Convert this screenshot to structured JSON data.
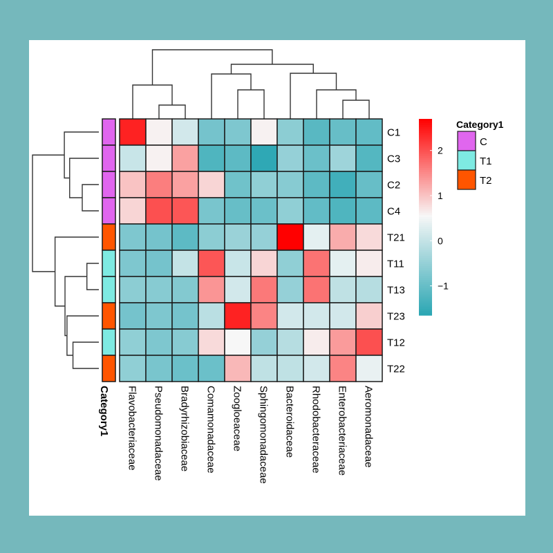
{
  "chart_data": {
    "type": "heatmap",
    "title": "",
    "rows": [
      "C1",
      "C3",
      "C2",
      "C4",
      "T21",
      "T11",
      "T13",
      "T23",
      "T12",
      "T22"
    ],
    "columns": [
      "Flavobacteriaceae",
      "Pseudomonadaceae",
      "Bradyrhizobiaceae",
      "Comamonadaceae",
      "Zoogloeaceae",
      "Sphingomonadaceae",
      "Bacteroidaceae",
      "Rhodobacteraceae",
      "Enterobacteriaceae",
      "Aeromonadaceae"
    ],
    "values": [
      [
        2.4,
        0.6,
        0.15,
        -0.85,
        -0.75,
        0.6,
        -0.6,
        -1.15,
        -1.0,
        -1.05
      ],
      [
        0.05,
        0.6,
        1.3,
        -1.25,
        -1.1,
        -1.6,
        -0.5,
        -0.95,
        -0.4,
        -1.2
      ],
      [
        1.0,
        1.6,
        1.3,
        0.85,
        -0.9,
        -0.55,
        -0.65,
        -1.1,
        -1.4,
        -1.0
      ],
      [
        0.85,
        2.0,
        1.95,
        -0.8,
        -1.0,
        -0.95,
        -0.55,
        -1.05,
        -1.25,
        -1.1
      ],
      [
        -0.75,
        -0.85,
        -1.1,
        -0.6,
        -0.45,
        -0.5,
        2.7,
        0.35,
        1.2,
        0.8
      ],
      [
        -0.75,
        -0.85,
        0.0,
        1.95,
        0.05,
        0.85,
        -0.55,
        1.7,
        0.35,
        0.65
      ],
      [
        -0.6,
        -0.65,
        -0.7,
        1.4,
        0.15,
        1.65,
        -0.5,
        1.7,
        -0.05,
        -0.15
      ],
      [
        -0.85,
        -0.75,
        -0.85,
        -0.1,
        2.4,
        1.55,
        0.15,
        0.15,
        0.15,
        0.9
      ],
      [
        -0.55,
        -0.75,
        -0.65,
        0.8,
        0.55,
        -0.5,
        -0.15,
        0.65,
        1.35,
        2.0
      ],
      [
        -0.55,
        -0.8,
        -0.95,
        -0.95,
        1.1,
        -0.05,
        -0.05,
        0.15,
        1.55,
        0.4
      ]
    ],
    "row_annotation": {
      "title": "Category1",
      "values": [
        "C",
        "C",
        "C",
        "C",
        "T2",
        "T1",
        "T1",
        "T2",
        "T1",
        "T2"
      ]
    },
    "annotation_legend": {
      "title": "Category1",
      "entries": [
        {
          "label": "C",
          "color": "#e066ee"
        },
        {
          "label": "T1",
          "color": "#7eeae2"
        },
        {
          "label": "T2",
          "color": "#ff5500"
        }
      ]
    },
    "color_scale": {
      "min": -1.65,
      "mid": 0.55,
      "max": 2.7,
      "low_color": "#2aa6b3",
      "mid_color": "#f7f7f7",
      "high_color": "#ff0000",
      "ticks": [
        2,
        1,
        0,
        -1
      ],
      "tick_labels": [
        "2",
        "1",
        "0",
        "−1"
      ]
    },
    "row_dendrogram": {
      "merges": [
        {
          "a": "C2",
          "b": "C4",
          "height": 0.25
        },
        {
          "a": "C3",
          "b": "C2+C4",
          "height": 0.44
        },
        {
          "a": "C1",
          "b": "C3+C2+C4",
          "height": 0.52
        },
        {
          "a": "T11",
          "b": "T13",
          "height": 0.18
        },
        {
          "a": "T12",
          "b": "T22",
          "height": 0.39
        },
        {
          "a": "T23",
          "b": "T12+T22",
          "height": 0.48
        },
        {
          "a": "T11+T13",
          "b": "T23+T12+T22",
          "height": 0.51
        },
        {
          "a": "T21",
          "b": "T-group",
          "height": 0.66
        },
        {
          "a": "C-group",
          "b": "T-group-all",
          "height": 1.0
        }
      ]
    },
    "col_dendrogram": {
      "merges": [
        {
          "a": "Pseudomonadaceae",
          "b": "Bradyrhizobiaceae",
          "height": 0.2
        },
        {
          "a": "Flavobacteriaceae",
          "b": "Pseudomonadaceae+Bradyrhizobiaceae",
          "height": 0.49
        },
        {
          "a": "Zoogloeaceae",
          "b": "Sphingomonadaceae",
          "height": 0.42
        },
        {
          "a": "Comamonadaceae",
          "b": "Zoogloeaceae+Sphingomonadaceae",
          "height": 0.65
        },
        {
          "a": "Enterobacteriaceae",
          "b": "Aeromonadaceae",
          "height": 0.27
        },
        {
          "a": "Rhodobacteraceae",
          "b": "Enterobacteriaceae+Aeromonadaceae",
          "height": 0.42
        },
        {
          "a": "Bacteroidaceae",
          "b": "Rhodobacteraceae+...",
          "height": 0.66
        },
        {
          "a": "Comamonadaceae-group",
          "b": "Bacteroidaceae-group",
          "height": 0.79
        },
        {
          "a": "left-group",
          "b": "right-group",
          "height": 1.0
        }
      ]
    }
  }
}
